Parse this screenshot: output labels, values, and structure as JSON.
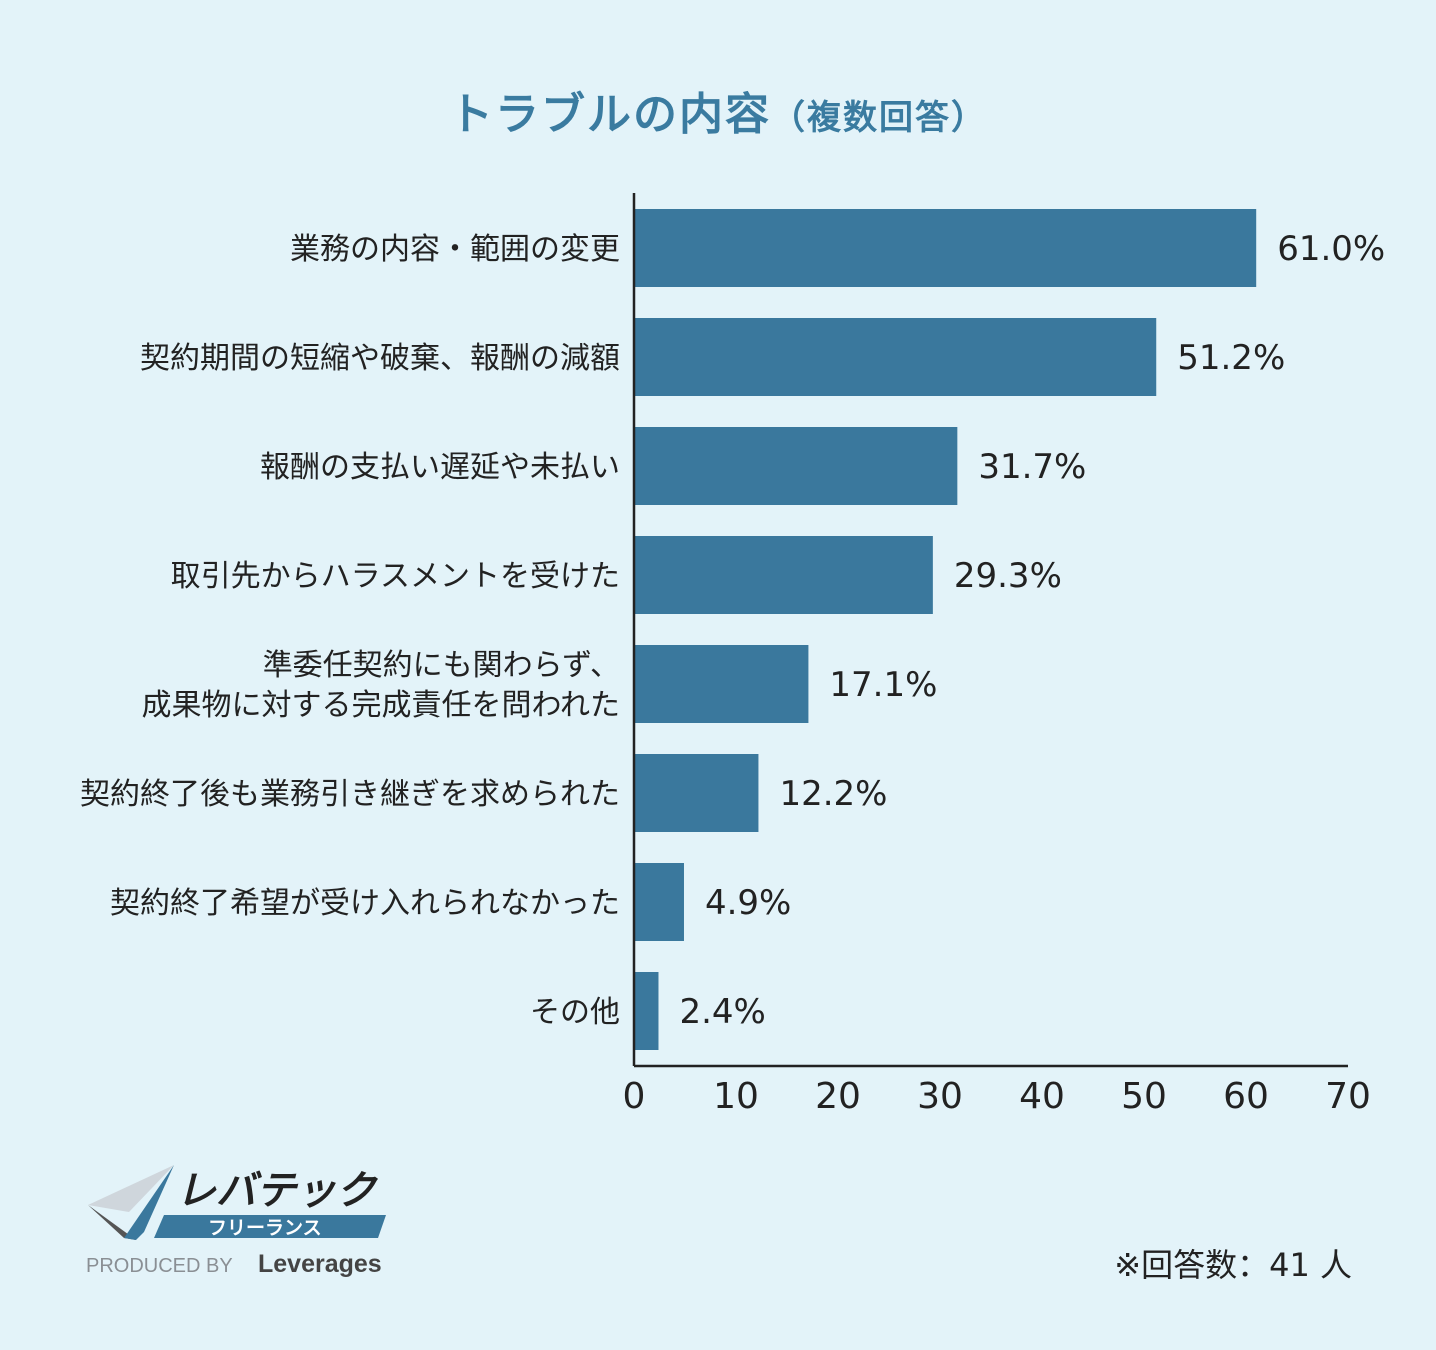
{
  "header": {
    "title_main": "トラブルの内容",
    "title_sub": "（複数回答）"
  },
  "chart_data": {
    "type": "bar",
    "orientation": "horizontal",
    "title": "トラブルの内容（複数回答）",
    "categories": [
      [
        "業務の内容・範囲の変更"
      ],
      [
        "契約期間の短縮や破棄、報酬の減額"
      ],
      [
        "報酬の支払い遅延や未払い"
      ],
      [
        "取引先からハラスメントを受けた"
      ],
      [
        "準委任契約にも関わらず、",
        "成果物に対する完成責任を問われた"
      ],
      [
        "契約終了後も業務引き継ぎを求められた"
      ],
      [
        "契約終了希望が受け入れられなかった"
      ],
      [
        "その他"
      ]
    ],
    "values": [
      61.0,
      51.2,
      31.7,
      29.3,
      17.1,
      12.2,
      4.9,
      2.4
    ],
    "value_labels": [
      "61.0%",
      "51.2%",
      "31.7%",
      "29.3%",
      "17.1%",
      "12.2%",
      "4.9%",
      "2.4%"
    ],
    "xlim": [
      0,
      70
    ],
    "xticks": [
      0,
      10,
      20,
      30,
      40,
      50,
      60,
      70
    ],
    "bar_color": "#3a789d",
    "grid": false
  },
  "logo": {
    "brand": "レバテック",
    "sub": "フリーランス",
    "produced_by": "PRODUCED BY",
    "company": "Leverages"
  },
  "note": "※回答数：41 人"
}
